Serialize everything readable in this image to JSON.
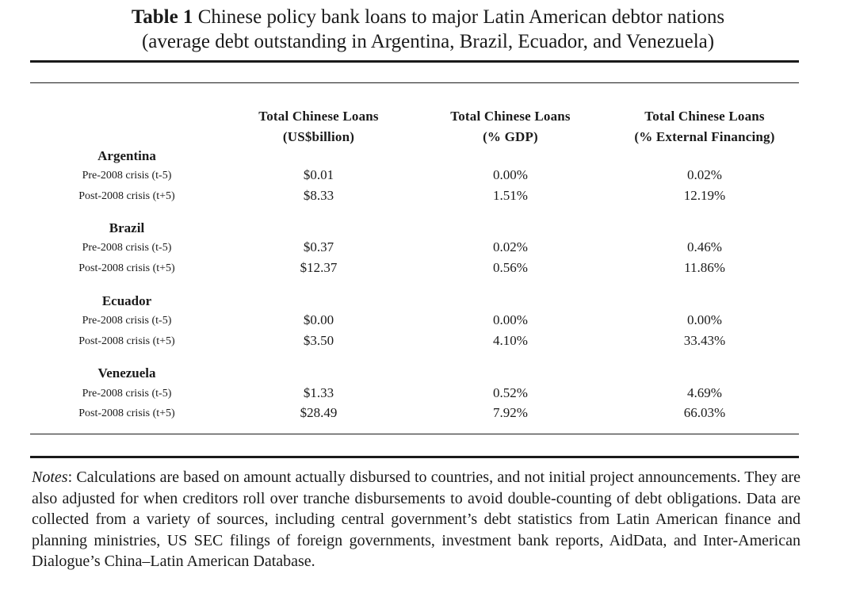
{
  "caption": {
    "label": "Table 1",
    "line1": "Chinese policy bank loans to major Latin American debtor nations",
    "line2": "(average debt outstanding in Argentina, Brazil, Ecuador, and Venezuela)"
  },
  "columns": [
    {
      "line1": "Total Chinese Loans",
      "line2": "(US$billion)"
    },
    {
      "line1": "Total Chinese Loans",
      "line2": "(% GDP)"
    },
    {
      "line1": "Total Chinese Loans",
      "line2": "(% External Financing)"
    }
  ],
  "countries": [
    {
      "name": "Argentina",
      "rows": [
        {
          "label": "Pre-2008 crisis (t-5)",
          "values": [
            "$0.01",
            "0.00%",
            "0.02%"
          ]
        },
        {
          "label": "Post-2008 crisis (t+5)",
          "values": [
            "$8.33",
            "1.51%",
            "12.19%"
          ]
        }
      ]
    },
    {
      "name": "Brazil",
      "rows": [
        {
          "label": "Pre-2008 crisis (t-5)",
          "values": [
            "$0.37",
            "0.02%",
            "0.46%"
          ]
        },
        {
          "label": "Post-2008 crisis (t+5)",
          "values": [
            "$12.37",
            "0.56%",
            "11.86%"
          ]
        }
      ]
    },
    {
      "name": "Ecuador",
      "rows": [
        {
          "label": "Pre-2008 crisis (t-5)",
          "values": [
            "$0.00",
            "0.00%",
            "0.00%"
          ]
        },
        {
          "label": "Post-2008 crisis (t+5)",
          "values": [
            "$3.50",
            "4.10%",
            "33.43%"
          ]
        }
      ]
    },
    {
      "name": "Venezuela",
      "rows": [
        {
          "label": "Pre-2008 crisis (t-5)",
          "values": [
            "$1.33",
            "0.52%",
            "4.69%"
          ]
        },
        {
          "label": "Post-2008 crisis (t+5)",
          "values": [
            "$28.49",
            "7.92%",
            "66.03%"
          ]
        }
      ]
    }
  ],
  "notes": {
    "label": "Notes",
    "text": ": Calculations are based on amount actually disbursed to countries, and not initial project announcements. They are also adjusted for when creditors roll over tranche disbursements to avoid double-counting of debt obligations. Data are collected from a variety of sources, including central government’s debt statistics from Latin American finance and planning ministries, US SEC filings of foreign governments, investment bank reports, AidData, and Inter-American Dialogue’s China–Latin American Database."
  }
}
